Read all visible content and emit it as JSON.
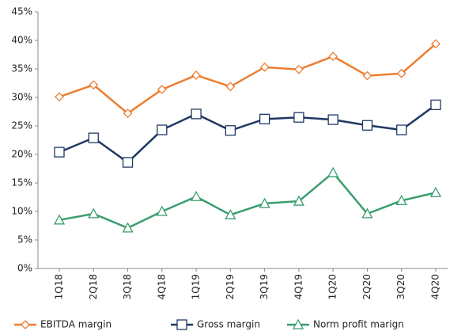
{
  "chart_data": {
    "type": "line",
    "categories": [
      "1Q18",
      "2Q18",
      "3Q18",
      "4Q18",
      "1Q19",
      "2Q19",
      "3Q19",
      "4Q19",
      "1Q20",
      "2Q20",
      "3Q20",
      "4Q20"
    ],
    "series": [
      {
        "name": "EBITDA margin",
        "color": "#ed7d31",
        "marker": "diamond",
        "values": [
          30.1,
          32.2,
          27.2,
          31.4,
          33.9,
          31.9,
          35.3,
          34.9,
          37.2,
          33.8,
          34.2,
          39.4
        ]
      },
      {
        "name": "Gross margin",
        "color": "#1f3864",
        "marker": "square",
        "values": [
          20.4,
          22.9,
          18.6,
          24.3,
          27.1,
          24.2,
          26.2,
          26.5,
          26.1,
          25.1,
          24.3,
          28.7
        ]
      },
      {
        "name": "Norm profit marign",
        "color": "#3a9e6e",
        "marker": "triangle",
        "values": [
          8.5,
          9.6,
          7.1,
          10,
          12.6,
          9.4,
          11.4,
          11.8,
          16.8,
          9.6,
          11.9,
          13.3
        ]
      }
    ],
    "ylim": [
      0,
      45
    ],
    "yticks": [
      {
        "value": 0,
        "label": "0%"
      },
      {
        "value": 5,
        "label": "5%"
      },
      {
        "value": 10,
        "label": "10%"
      },
      {
        "value": 15,
        "label": "15%"
      },
      {
        "value": 20,
        "label": "20%"
      },
      {
        "value": 25,
        "label": "25%"
      },
      {
        "value": 30,
        "label": "30%"
      },
      {
        "value": 35,
        "label": "35%"
      },
      {
        "value": 40,
        "label": "40%"
      },
      {
        "value": 45,
        "label": "45%"
      }
    ],
    "grid": false,
    "legend": "bottom"
  }
}
